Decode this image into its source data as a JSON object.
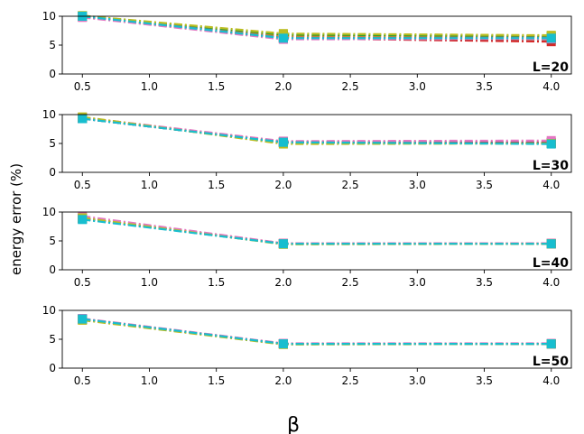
{
  "chart_data": {
    "type": "line",
    "ylabel": "energy error (%)",
    "xlabel": "β",
    "x": [
      0.5,
      2.0,
      4.0
    ],
    "xticks": [
      "0.5",
      "1.0",
      "1.5",
      "2.0",
      "2.5",
      "3.0",
      "3.5",
      "4.0"
    ],
    "yticks": [
      "0",
      "5",
      "10"
    ],
    "xlim": [
      0.35,
      4.15
    ],
    "ylim": [
      0,
      10
    ],
    "grid": false,
    "legend": false,
    "line_style": "dash-dot with square markers",
    "series_colors": [
      "#1f77b4",
      "#ff7f0e",
      "#2ca02c",
      "#d62728",
      "#9467bd",
      "#8c564b",
      "#e377c2",
      "#7f7f7f",
      "#bcbd22",
      "#17becf"
    ],
    "panels": [
      {
        "label": "L=20",
        "series": [
          {
            "values": [
              10.0,
              6.4,
              6.0
            ]
          },
          {
            "values": [
              10.0,
              6.6,
              6.4
            ]
          },
          {
            "values": [
              10.1,
              6.8,
              6.6
            ]
          },
          {
            "values": [
              9.9,
              6.2,
              5.6
            ]
          },
          {
            "values": [
              10.0,
              6.3,
              6.2
            ]
          },
          {
            "values": [
              9.9,
              6.1,
              6.0
            ]
          },
          {
            "values": [
              9.8,
              6.0,
              6.1
            ]
          },
          {
            "values": [
              10.0,
              6.3,
              6.3
            ]
          },
          {
            "values": [
              10.1,
              7.0,
              6.7
            ]
          },
          {
            "values": [
              10.0,
              6.2,
              6.2
            ]
          }
        ]
      },
      {
        "label": "L=30",
        "series": [
          {
            "values": [
              9.3,
              5.2,
              5.0
            ]
          },
          {
            "values": [
              9.5,
              5.3,
              5.1
            ]
          },
          {
            "values": [
              9.4,
              5.1,
              5.0
            ]
          },
          {
            "values": [
              9.4,
              5.3,
              5.2
            ]
          },
          {
            "values": [
              9.3,
              5.2,
              5.1
            ]
          },
          {
            "values": [
              9.4,
              5.2,
              5.1
            ]
          },
          {
            "values": [
              9.5,
              5.4,
              5.5
            ]
          },
          {
            "values": [
              9.3,
              5.2,
              5.0
            ]
          },
          {
            "values": [
              9.6,
              4.9,
              5.0
            ]
          },
          {
            "values": [
              9.3,
              5.2,
              4.9
            ]
          }
        ]
      },
      {
        "label": "L=40",
        "series": [
          {
            "values": [
              8.8,
              4.5,
              4.5
            ]
          },
          {
            "values": [
              8.9,
              4.5,
              4.5
            ]
          },
          {
            "values": [
              8.9,
              4.5,
              4.5
            ]
          },
          {
            "values": [
              9.0,
              4.6,
              4.6
            ]
          },
          {
            "values": [
              8.9,
              4.5,
              4.5
            ]
          },
          {
            "values": [
              8.9,
              4.5,
              4.5
            ]
          },
          {
            "values": [
              9.3,
              4.6,
              4.6
            ]
          },
          {
            "values": [
              8.8,
              4.5,
              4.5
            ]
          },
          {
            "values": [
              9.0,
              4.4,
              4.5
            ]
          },
          {
            "values": [
              8.7,
              4.5,
              4.5
            ]
          }
        ]
      },
      {
        "label": "L=50",
        "series": [
          {
            "values": [
              8.5,
              4.2,
              4.2
            ]
          },
          {
            "values": [
              8.4,
              4.2,
              4.2
            ]
          },
          {
            "values": [
              8.5,
              4.2,
              4.2
            ]
          },
          {
            "values": [
              8.5,
              4.2,
              4.2
            ]
          },
          {
            "values": [
              8.5,
              4.2,
              4.2
            ]
          },
          {
            "values": [
              8.5,
              4.2,
              4.2
            ]
          },
          {
            "values": [
              8.6,
              4.3,
              4.3
            ]
          },
          {
            "values": [
              8.5,
              4.2,
              4.2
            ]
          },
          {
            "values": [
              8.3,
              4.1,
              4.2
            ]
          },
          {
            "values": [
              8.5,
              4.2,
              4.2
            ]
          }
        ]
      }
    ]
  }
}
